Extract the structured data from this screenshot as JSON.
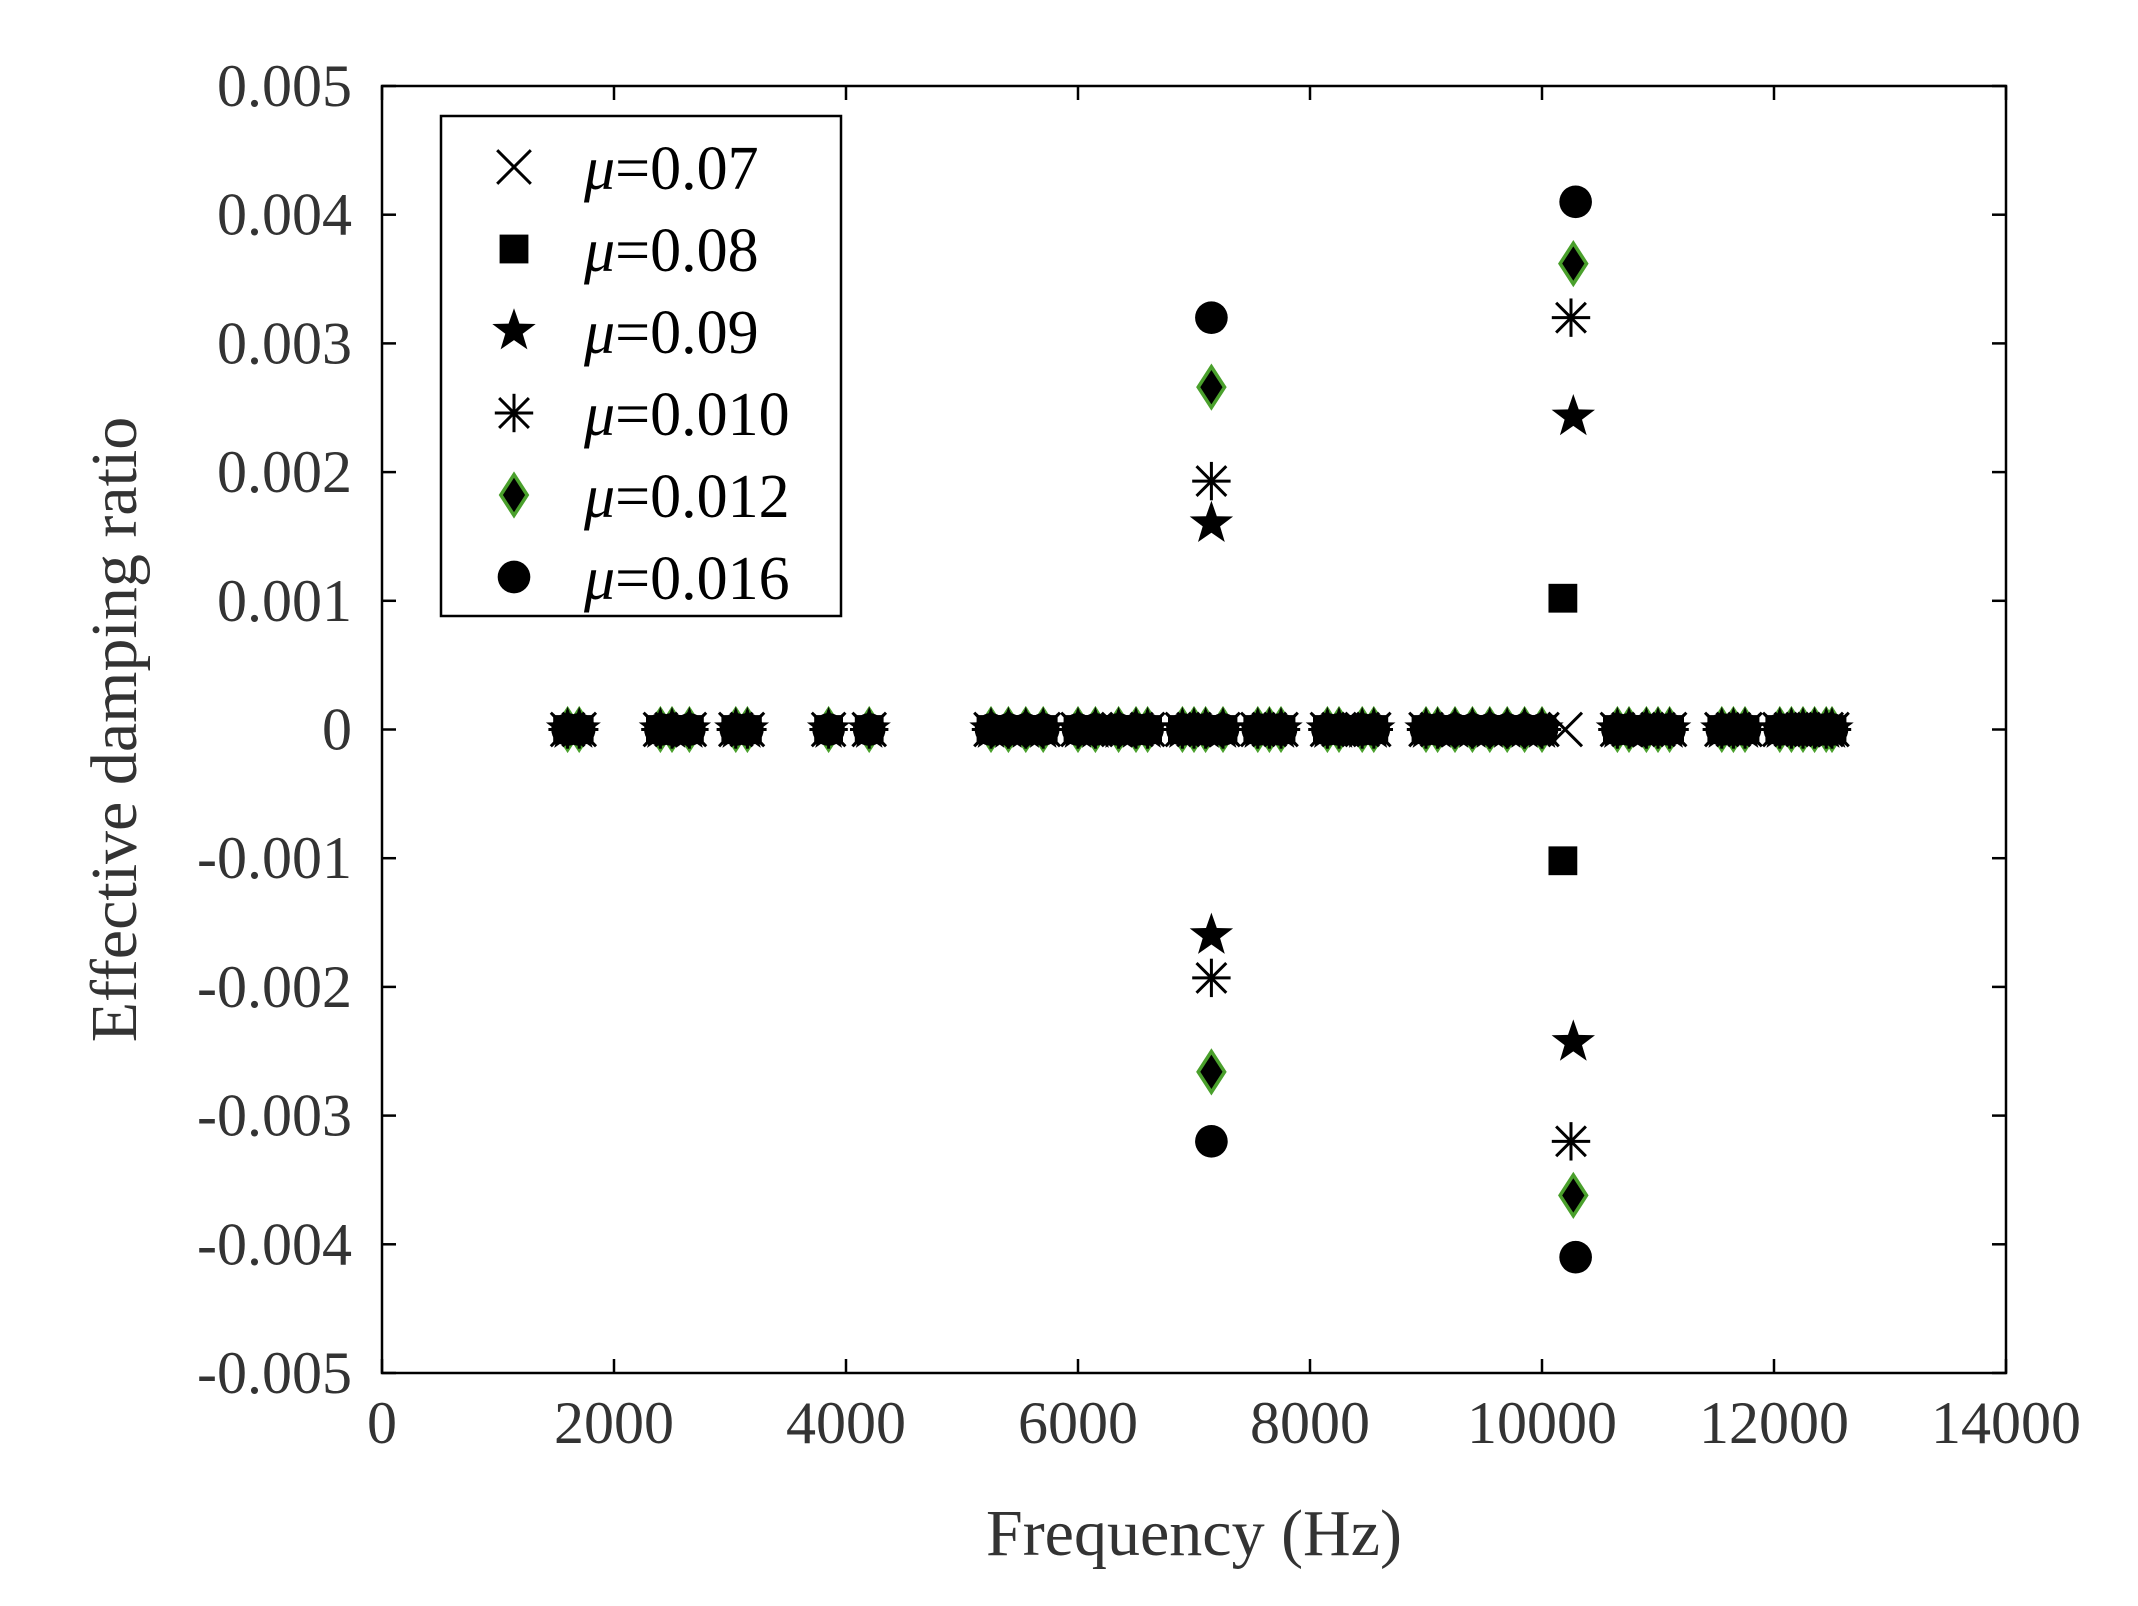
{
  "chart_data": {
    "type": "scatter",
    "xlabel": "Frequency (Hz)",
    "ylabel": "Effective damping ratio",
    "xlim": [
      0,
      14000
    ],
    "ylim": [
      -0.005,
      0.005
    ],
    "x_ticks": [
      0,
      2000,
      4000,
      6000,
      8000,
      10000,
      12000,
      14000
    ],
    "x_tick_labels": [
      "0",
      "2000",
      "4000",
      "6000",
      "8000",
      "10000",
      "12000",
      "14000"
    ],
    "y_ticks": [
      0.005,
      0.004,
      0.003,
      0.002,
      0.001,
      0,
      -0.001,
      -0.002,
      -0.003,
      -0.004,
      -0.005
    ],
    "y_tick_labels": [
      "0.005",
      "0.004",
      "0.003",
      "0.002",
      "0.001",
      "0",
      "-0.001",
      "-0.002",
      "-0.003",
      "-0.004",
      "-0.005"
    ],
    "grid": false,
    "legend_position": "top-left",
    "zero_frequencies": [
      1600,
      1700,
      2400,
      2500,
      2650,
      3050,
      3150,
      3850,
      4200,
      5250,
      5400,
      5550,
      5700,
      6000,
      6150,
      6350,
      6500,
      6600,
      6900,
      7000,
      7100,
      7250,
      7550,
      7650,
      7750,
      8150,
      8250,
      8450,
      8550,
      9000,
      9100,
      9250,
      9400,
      9550,
      9700,
      9850,
      10000,
      10650,
      10750,
      10900,
      11000,
      11100,
      11550,
      11650,
      11750,
      12050,
      12150,
      12250,
      12350,
      12450,
      12500
    ],
    "series": [
      {
        "name": "μ=0.07",
        "marker": "x",
        "color": "#000000",
        "x": [
          10200
        ],
        "y": [
          0
        ]
      },
      {
        "name": "μ=0.08",
        "marker": "square",
        "color": "#000000",
        "x": [
          10180,
          10180
        ],
        "y": [
          0.00102,
          -0.00102
        ]
      },
      {
        "name": "μ=0.09",
        "marker": "star",
        "color": "#000000",
        "x": [
          7150,
          7150,
          10270,
          10270
        ],
        "y": [
          0.0016,
          -0.0016,
          0.00243,
          -0.00243
        ]
      },
      {
        "name": "μ=0.010",
        "marker": "asterisk",
        "color": "#000000",
        "x": [
          7150,
          7150,
          10250,
          10250
        ],
        "y": [
          0.00193,
          -0.00193,
          0.0032,
          -0.0032
        ]
      },
      {
        "name": "μ=0.012",
        "marker": "diamond",
        "color": "#000000",
        "edge_color": "#4aa02c",
        "x": [
          7150,
          7150,
          10270,
          10270
        ],
        "y": [
          0.00266,
          -0.00266,
          0.00362,
          -0.00362
        ]
      },
      {
        "name": "μ=0.016",
        "marker": "circle",
        "color": "#000000",
        "x": [
          7150,
          7150,
          10290,
          10290
        ],
        "y": [
          0.0032,
          -0.0032,
          0.0041,
          -0.0041
        ]
      }
    ]
  }
}
